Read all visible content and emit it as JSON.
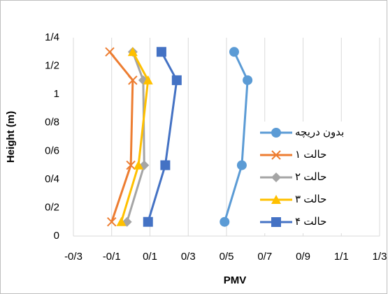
{
  "chart_data": {
    "type": "line",
    "xlabel": "PMV",
    "ylabel": "Height (m)",
    "xlim": [
      -0.3,
      1.3
    ],
    "xticks": [
      {
        "value": -0.3,
        "label": "-0/3"
      },
      {
        "value": -0.1,
        "label": "-0/1"
      },
      {
        "value": 0.1,
        "label": "0/1"
      },
      {
        "value": 0.3,
        "label": "0/3"
      },
      {
        "value": 0.5,
        "label": "0/5"
      },
      {
        "value": 0.7,
        "label": "0/7"
      },
      {
        "value": 0.9,
        "label": "0/9"
      },
      {
        "value": 1.1,
        "label": "1/1"
      },
      {
        "value": 1.3,
        "label": "1/3"
      }
    ],
    "ylim": [
      0,
      1.4
    ],
    "yticks": [
      0,
      {
        "value": 0.2,
        "label": "0/2"
      },
      {
        "value": 0.4,
        "label": "0/4"
      },
      {
        "value": 0.6,
        "label": "0/6"
      },
      {
        "value": 0.8,
        "label": "0/8"
      },
      1,
      {
        "value": 1.2,
        "label": "1/2"
      },
      {
        "value": 1.4,
        "label": "1/4"
      }
    ],
    "grid": true,
    "legend": "right",
    "y": [
      0.1,
      0.5,
      1.1,
      1.3
    ],
    "series": [
      {
        "name": "بدون دریچه",
        "color": "#5B9BD5",
        "marker": "circle",
        "values": [
          0.49,
          0.58,
          0.61,
          0.54
        ]
      },
      {
        "name": "حالت ۱",
        "color": "#ED7D31",
        "marker": "x",
        "values": [
          -0.1,
          0.0,
          0.01,
          -0.11
        ]
      },
      {
        "name": "حالت ۲",
        "color": "#A5A5A5",
        "marker": "diamond",
        "values": [
          -0.02,
          0.07,
          0.065,
          0.01
        ]
      },
      {
        "name": "حالت ۳",
        "color": "#FFC000",
        "marker": "triangle",
        "values": [
          -0.05,
          0.04,
          0.09,
          0.01
        ]
      },
      {
        "name": "حالت ۴",
        "color": "#4472C4",
        "marker": "square",
        "values": [
          0.09,
          0.18,
          0.24,
          0.16
        ]
      }
    ]
  }
}
